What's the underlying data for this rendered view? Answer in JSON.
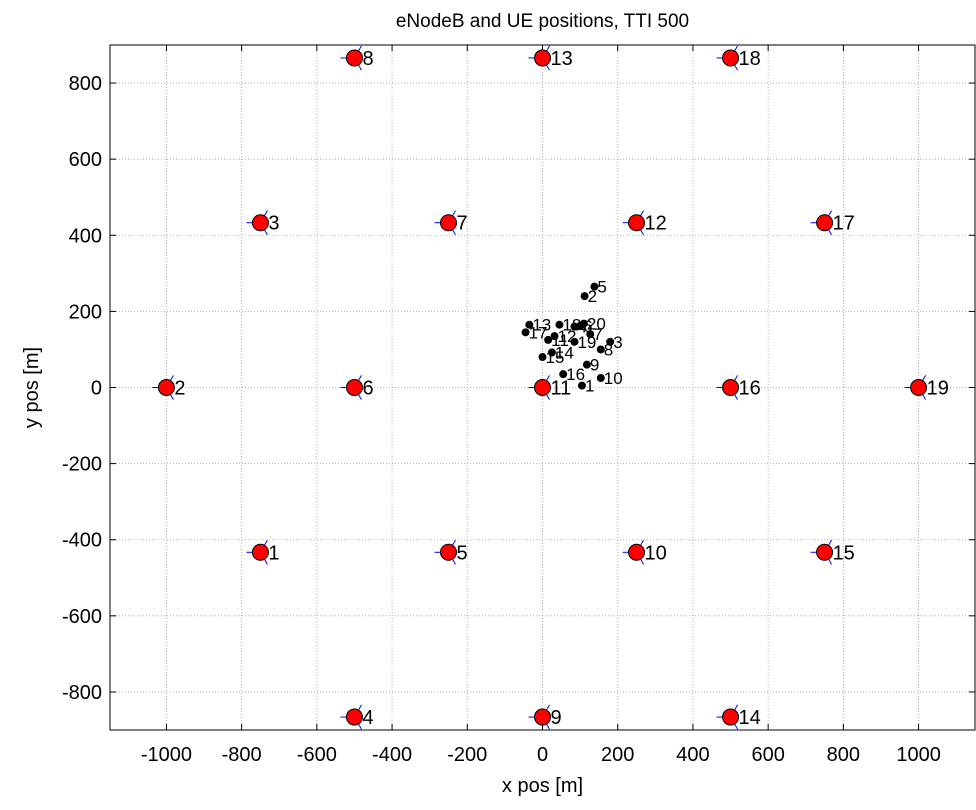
{
  "chart_data": {
    "type": "scatter",
    "title": "eNodeB and UE positions, TTI 500",
    "xlabel": "x pos [m]",
    "ylabel": "y pos [m]",
    "xlim": [
      -1150,
      1150
    ],
    "ylim": [
      -900,
      900
    ],
    "xticks": [
      -1000,
      -800,
      -600,
      -400,
      -200,
      0,
      200,
      400,
      600,
      800,
      1000
    ],
    "yticks": [
      -800,
      -600,
      -400,
      -200,
      0,
      200,
      400,
      600,
      800
    ],
    "grid": true,
    "colors": {
      "enb_fill": "#ff0000",
      "enb_edge": "#000000",
      "sector_line": "#0000ff",
      "ue_fill": "#000000",
      "grid": "#a0a0a0"
    },
    "enodebs": [
      {
        "id": "1",
        "x": -750,
        "y": -433
      },
      {
        "id": "2",
        "x": -1000,
        "y": 0
      },
      {
        "id": "3",
        "x": -750,
        "y": 433
      },
      {
        "id": "4",
        "x": -500,
        "y": -866
      },
      {
        "id": "5",
        "x": -250,
        "y": -433
      },
      {
        "id": "6",
        "x": -500,
        "y": 0
      },
      {
        "id": "7",
        "x": -250,
        "y": 433
      },
      {
        "id": "8",
        "x": -500,
        "y": 866
      },
      {
        "id": "9",
        "x": 0,
        "y": -866
      },
      {
        "id": "10",
        "x": 250,
        "y": -433
      },
      {
        "id": "11",
        "x": 0,
        "y": 0
      },
      {
        "id": "12",
        "x": 250,
        "y": 433
      },
      {
        "id": "13",
        "x": 0,
        "y": 866
      },
      {
        "id": "14",
        "x": 500,
        "y": -866
      },
      {
        "id": "15",
        "x": 750,
        "y": -433
      },
      {
        "id": "16",
        "x": 500,
        "y": 0
      },
      {
        "id": "17",
        "x": 750,
        "y": 433
      },
      {
        "id": "18",
        "x": 500,
        "y": 866
      },
      {
        "id": "19",
        "x": 1000,
        "y": 0
      }
    ],
    "ues": [
      {
        "id": "1",
        "x": 105,
        "y": 5
      },
      {
        "id": "2",
        "x": 112,
        "y": 240
      },
      {
        "id": "3",
        "x": 180,
        "y": 120
      },
      {
        "id": "4",
        "x": 85,
        "y": 160
      },
      {
        "id": "5",
        "x": 138,
        "y": 265
      },
      {
        "id": "6",
        "x": 100,
        "y": 162
      },
      {
        "id": "7",
        "x": 127,
        "y": 140
      },
      {
        "id": "8",
        "x": 155,
        "y": 100
      },
      {
        "id": "9",
        "x": 118,
        "y": 60
      },
      {
        "id": "10",
        "x": 155,
        "y": 25
      },
      {
        "id": "11",
        "x": 15,
        "y": 125
      },
      {
        "id": "12",
        "x": 32,
        "y": 135
      },
      {
        "id": "13",
        "x": -35,
        "y": 165
      },
      {
        "id": "14",
        "x": 25,
        "y": 92
      },
      {
        "id": "15",
        "x": 0,
        "y": 80
      },
      {
        "id": "16",
        "x": 55,
        "y": 35
      },
      {
        "id": "17",
        "x": -45,
        "y": 145
      },
      {
        "id": "18",
        "x": 45,
        "y": 165
      },
      {
        "id": "19",
        "x": 85,
        "y": 120
      },
      {
        "id": "20",
        "x": 110,
        "y": 168
      }
    ]
  }
}
